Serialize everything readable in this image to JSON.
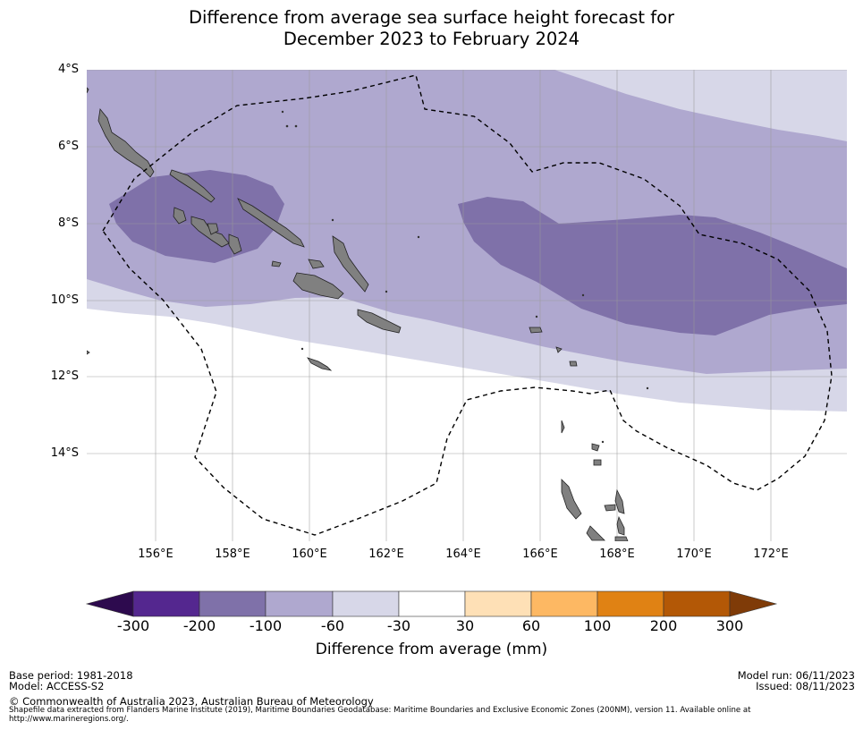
{
  "title": {
    "line1": "Difference from average sea surface height forecast for",
    "line2": "December 2023 to February 2024"
  },
  "map": {
    "lat_labels": [
      "4°S",
      "6°S",
      "8°S",
      "10°S",
      "12°S",
      "14°S"
    ],
    "lon_labels": [
      "156°E",
      "158°E",
      "160°E",
      "162°E",
      "164°E",
      "166°E",
      "168°E",
      "170°E",
      "172°E"
    ],
    "colors": {
      "band_-30_-60": "#d7d7e8",
      "band_-60_-100": "#afa8cf",
      "band_-100_-200": "#7f71a9",
      "land": "#808080",
      "eez_line": "#000000",
      "grid": "#9a9a9a"
    }
  },
  "colorbar": {
    "tick_labels": [
      "-300",
      "-200",
      "-100",
      "-60",
      "-30",
      "30",
      "60",
      "100",
      "200",
      "300"
    ],
    "bins": [
      {
        "range": "below -300",
        "color": "#2d0a4e"
      },
      {
        "range": "-300 to -200",
        "color": "#54278f"
      },
      {
        "range": "-200 to -100",
        "color": "#7f71a9"
      },
      {
        "range": "-100 to -60",
        "color": "#afa8cf"
      },
      {
        "range": "-60 to -30",
        "color": "#d7d7e8"
      },
      {
        "range": "-30 to 30",
        "color": "#ffffff"
      },
      {
        "range": "30 to 60",
        "color": "#fee0b6"
      },
      {
        "range": "60 to 100",
        "color": "#fdb863"
      },
      {
        "range": "100 to 200",
        "color": "#e08214"
      },
      {
        "range": "200 to 300",
        "color": "#b35806"
      },
      {
        "range": "above 300",
        "color": "#7f3b08"
      }
    ],
    "label": "Difference from average (mm)"
  },
  "footer": {
    "base_period": "Base period: 1981-2018",
    "model": "Model: ACCESS-S2",
    "model_run": "Model run: 06/11/2023",
    "issued": "Issued: 08/11/2023",
    "copyright": "© Commonwealth of Australia 2023, Australian Bureau of Meteorology",
    "shapefile_line1": "Shapefile data extracted from Flanders Marine Institute (2019), Maritime Boundaries Geodatabase: Maritime Boundaries and Exclusive Economic Zones (200NM), version 11. Available online at",
    "shapefile_line2": "http://www.marineregions.org/."
  }
}
